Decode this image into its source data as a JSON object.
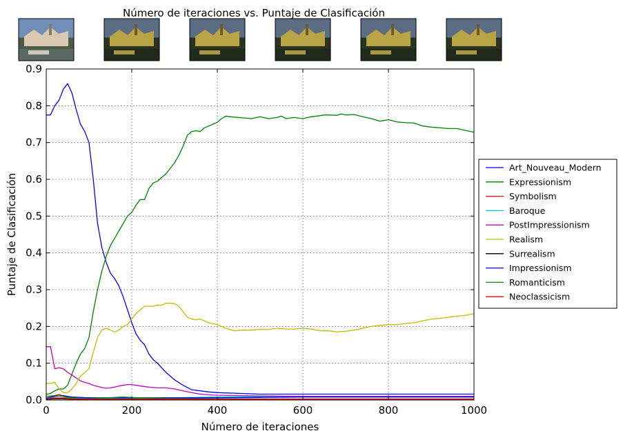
{
  "chart_data": {
    "type": "line",
    "title": "Número de iteraciones vs. Puntaje de Clasificación",
    "xlabel": "Número de iteraciones",
    "ylabel": "Puntaje de Clasificación",
    "xlim": [
      0,
      1000
    ],
    "ylim": [
      0,
      0.9
    ],
    "xticks": [
      0,
      200,
      400,
      600,
      800,
      1000
    ],
    "yticks": [
      0.0,
      0.1,
      0.2,
      0.3,
      0.4,
      0.5,
      0.6,
      0.7,
      0.8,
      0.9
    ],
    "grid": true,
    "legend_position": "right-outside",
    "thumbnail_count": 6,
    "series": [
      {
        "name": "Art_Nouveau_Modern",
        "color": "#0000ff",
        "x": [
          0,
          10,
          20,
          30,
          40,
          50,
          60,
          70,
          80,
          90,
          100,
          110,
          120,
          130,
          140,
          150,
          160,
          170,
          180,
          190,
          200,
          210,
          220,
          230,
          240,
          250,
          260,
          280,
          300,
          320,
          340,
          360,
          380,
          400,
          450,
          500,
          550,
          600,
          650,
          700,
          750,
          800,
          850,
          900,
          950,
          1000
        ],
        "y": [
          0.775,
          0.775,
          0.8,
          0.815,
          0.845,
          0.86,
          0.835,
          0.79,
          0.75,
          0.73,
          0.7,
          0.6,
          0.48,
          0.415,
          0.375,
          0.345,
          0.33,
          0.31,
          0.28,
          0.245,
          0.21,
          0.18,
          0.162,
          0.15,
          0.125,
          0.11,
          0.1,
          0.075,
          0.055,
          0.04,
          0.028,
          0.025,
          0.022,
          0.02,
          0.018,
          0.016,
          0.016,
          0.016,
          0.016,
          0.016,
          0.016,
          0.016,
          0.016,
          0.016,
          0.016,
          0.016
        ]
      },
      {
        "name": "Expressionism",
        "color": "#008000",
        "x": [
          0,
          10,
          20,
          30,
          40,
          50,
          60,
          70,
          80,
          90,
          100,
          110,
          120,
          130,
          140,
          150,
          160,
          170,
          180,
          190,
          200,
          210,
          220,
          230,
          240,
          250,
          260,
          270,
          280,
          290,
          300,
          310,
          320,
          330,
          340,
          350,
          360,
          370,
          380,
          390,
          400,
          410,
          420,
          430,
          450,
          480,
          500,
          520,
          540,
          550,
          560,
          580,
          600,
          620,
          640,
          650,
          660,
          680,
          690,
          700,
          720,
          740,
          760,
          780,
          800,
          820,
          840,
          860,
          880,
          900,
          920,
          940,
          960,
          980,
          1000
        ],
        "y": [
          0.015,
          0.018,
          0.025,
          0.03,
          0.03,
          0.04,
          0.07,
          0.1,
          0.125,
          0.14,
          0.17,
          0.24,
          0.3,
          0.35,
          0.39,
          0.42,
          0.44,
          0.46,
          0.48,
          0.5,
          0.51,
          0.53,
          0.545,
          0.545,
          0.575,
          0.59,
          0.595,
          0.605,
          0.615,
          0.63,
          0.645,
          0.665,
          0.69,
          0.72,
          0.73,
          0.732,
          0.73,
          0.74,
          0.745,
          0.75,
          0.755,
          0.765,
          0.772,
          0.77,
          0.768,
          0.765,
          0.77,
          0.765,
          0.768,
          0.772,
          0.765,
          0.768,
          0.765,
          0.77,
          0.773,
          0.775,
          0.775,
          0.774,
          0.778,
          0.775,
          0.776,
          0.77,
          0.765,
          0.758,
          0.762,
          0.756,
          0.754,
          0.753,
          0.745,
          0.742,
          0.74,
          0.738,
          0.738,
          0.733,
          0.728
        ]
      },
      {
        "name": "Symbolism",
        "color": "#ff0000",
        "x": [
          0,
          10,
          20,
          30,
          40,
          50,
          60,
          80,
          100,
          150,
          200,
          300,
          400,
          500,
          600,
          700,
          800,
          900,
          1000
        ],
        "y": [
          0.005,
          0.008,
          0.012,
          0.015,
          0.01,
          0.006,
          0.004,
          0.003,
          0.003,
          0.003,
          0.003,
          0.003,
          0.002,
          0.002,
          0.002,
          0.002,
          0.002,
          0.002,
          0.002
        ]
      },
      {
        "name": "Baroque",
        "color": "#00bfbf",
        "x": [
          0,
          20,
          40,
          60,
          100,
          150,
          200,
          300,
          400,
          500,
          600,
          700,
          800,
          900,
          1000
        ],
        "y": [
          0.005,
          0.006,
          0.006,
          0.005,
          0.004,
          0.004,
          0.005,
          0.006,
          0.008,
          0.009,
          0.01,
          0.01,
          0.01,
          0.01,
          0.01
        ]
      },
      {
        "name": "PostImpressionism",
        "color": "#bf00bf",
        "x": [
          0,
          10,
          20,
          30,
          40,
          50,
          60,
          70,
          80,
          90,
          100,
          110,
          120,
          130,
          140,
          150,
          160,
          170,
          180,
          190,
          200,
          220,
          240,
          260,
          280,
          300,
          320,
          340,
          360,
          380,
          400,
          450,
          500,
          600,
          700,
          800,
          900,
          1000
        ],
        "y": [
          0.145,
          0.145,
          0.085,
          0.088,
          0.085,
          0.075,
          0.068,
          0.06,
          0.052,
          0.048,
          0.045,
          0.04,
          0.037,
          0.034,
          0.032,
          0.033,
          0.035,
          0.038,
          0.04,
          0.042,
          0.042,
          0.038,
          0.035,
          0.033,
          0.033,
          0.03,
          0.025,
          0.02,
          0.016,
          0.014,
          0.013,
          0.012,
          0.011,
          0.01,
          0.01,
          0.01,
          0.01,
          0.01
        ]
      },
      {
        "name": "Realism",
        "color": "#bfbf00",
        "x": [
          0,
          10,
          20,
          30,
          40,
          50,
          60,
          70,
          80,
          90,
          100,
          110,
          120,
          130,
          140,
          150,
          160,
          170,
          180,
          190,
          200,
          210,
          220,
          230,
          240,
          250,
          260,
          270,
          280,
          290,
          300,
          310,
          320,
          330,
          340,
          350,
          360,
          380,
          400,
          420,
          440,
          460,
          480,
          500,
          520,
          540,
          560,
          580,
          600,
          620,
          640,
          660,
          680,
          700,
          720,
          740,
          760,
          780,
          800,
          820,
          840,
          860,
          880,
          900,
          920,
          940,
          960,
          980,
          1000
        ],
        "y": [
          0.045,
          0.045,
          0.048,
          0.03,
          0.02,
          0.02,
          0.03,
          0.045,
          0.065,
          0.075,
          0.085,
          0.13,
          0.17,
          0.19,
          0.195,
          0.19,
          0.185,
          0.19,
          0.2,
          0.205,
          0.22,
          0.235,
          0.245,
          0.255,
          0.255,
          0.255,
          0.258,
          0.258,
          0.263,
          0.263,
          0.262,
          0.255,
          0.24,
          0.225,
          0.22,
          0.218,
          0.22,
          0.21,
          0.205,
          0.195,
          0.188,
          0.19,
          0.19,
          0.192,
          0.192,
          0.195,
          0.193,
          0.193,
          0.195,
          0.193,
          0.188,
          0.188,
          0.185,
          0.187,
          0.19,
          0.195,
          0.2,
          0.203,
          0.205,
          0.205,
          0.208,
          0.21,
          0.215,
          0.22,
          0.222,
          0.225,
          0.228,
          0.23,
          0.235
        ]
      },
      {
        "name": "Surrealism",
        "color": "#000000",
        "x": [
          0,
          20,
          40,
          60,
          100,
          200,
          300,
          400,
          500,
          600,
          700,
          800,
          900,
          1000
        ],
        "y": [
          0.002,
          0.003,
          0.003,
          0.002,
          0.002,
          0.002,
          0.002,
          0.002,
          0.002,
          0.002,
          0.002,
          0.002,
          0.002,
          0.002
        ]
      },
      {
        "name": "Impressionism",
        "color": "#0000ff",
        "x": [
          0,
          20,
          40,
          60,
          100,
          200,
          300,
          400,
          500,
          600,
          700,
          800,
          900,
          1000
        ],
        "y": [
          0.005,
          0.01,
          0.012,
          0.008,
          0.006,
          0.006,
          0.006,
          0.006,
          0.007,
          0.008,
          0.008,
          0.008,
          0.008,
          0.008
        ]
      },
      {
        "name": "Romanticism",
        "color": "#008000",
        "x": [
          0,
          20,
          40,
          60,
          80,
          100,
          120,
          140,
          160,
          180,
          200,
          220,
          260,
          300,
          400,
          500,
          600,
          700,
          800,
          900,
          1000
        ],
        "y": [
          0.01,
          0.012,
          0.01,
          0.006,
          0.004,
          0.004,
          0.005,
          0.006,
          0.007,
          0.008,
          0.007,
          0.006,
          0.005,
          0.004,
          0.003,
          0.003,
          0.003,
          0.003,
          0.003,
          0.003,
          0.003
        ]
      },
      {
        "name": "Neoclassicism",
        "color": "#ff0000",
        "x": [
          0,
          20,
          40,
          60,
          100,
          200,
          300,
          400,
          500,
          600,
          700,
          800,
          900,
          1000
        ],
        "y": [
          0.003,
          0.005,
          0.005,
          0.003,
          0.002,
          0.002,
          0.002,
          0.002,
          0.002,
          0.002,
          0.002,
          0.002,
          0.002,
          0.002
        ]
      }
    ]
  }
}
